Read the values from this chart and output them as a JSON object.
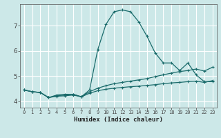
{
  "xlabel": "Humidex (Indice chaleur)",
  "ylabel": "",
  "xlim": [
    -0.5,
    23.5
  ],
  "ylim": [
    3.75,
    7.85
  ],
  "xticks": [
    0,
    1,
    2,
    3,
    4,
    5,
    6,
    7,
    8,
    9,
    10,
    11,
    12,
    13,
    14,
    15,
    16,
    17,
    18,
    19,
    20,
    21,
    22,
    23
  ],
  "yticks": [
    4,
    5,
    6,
    7
  ],
  "bg_color": "#cce8e8",
  "line_color": "#1a6b6b",
  "grid_color": "#ffffff",
  "lines": [
    {
      "x": [
        0,
        1,
        2,
        3,
        4,
        5,
        6,
        7,
        8,
        9,
        10,
        11,
        12,
        13,
        14,
        15,
        16,
        17,
        18,
        19,
        20,
        21,
        22,
        23
      ],
      "y": [
        4.45,
        4.38,
        4.35,
        4.15,
        4.25,
        4.28,
        4.28,
        4.18,
        4.45,
        6.05,
        7.05,
        7.55,
        7.62,
        7.55,
        7.15,
        6.58,
        5.92,
        5.52,
        5.52,
        5.22,
        5.52,
        5.05,
        4.78,
        4.78
      ]
    },
    {
      "x": [
        0,
        1,
        2,
        3,
        4,
        5,
        6,
        7,
        8,
        9,
        10,
        11,
        12,
        13,
        14,
        15,
        16,
        17,
        18,
        19,
        20,
        21,
        22,
        23
      ],
      "y": [
        4.45,
        4.38,
        4.35,
        4.15,
        4.22,
        4.25,
        4.28,
        4.18,
        4.38,
        4.52,
        4.62,
        4.7,
        4.75,
        4.8,
        4.85,
        4.9,
        4.98,
        5.05,
        5.12,
        5.18,
        5.22,
        5.28,
        5.2,
        5.35
      ]
    },
    {
      "x": [
        0,
        1,
        2,
        3,
        4,
        5,
        6,
        7,
        8,
        9,
        10,
        11,
        12,
        13,
        14,
        15,
        16,
        17,
        18,
        19,
        20,
        21,
        22,
        23
      ],
      "y": [
        4.45,
        4.38,
        4.35,
        4.15,
        4.2,
        4.22,
        4.25,
        4.18,
        4.32,
        4.42,
        4.48,
        4.52,
        4.55,
        4.58,
        4.6,
        4.63,
        4.66,
        4.7,
        4.73,
        4.75,
        4.78,
        4.8,
        4.75,
        4.82
      ]
    }
  ]
}
